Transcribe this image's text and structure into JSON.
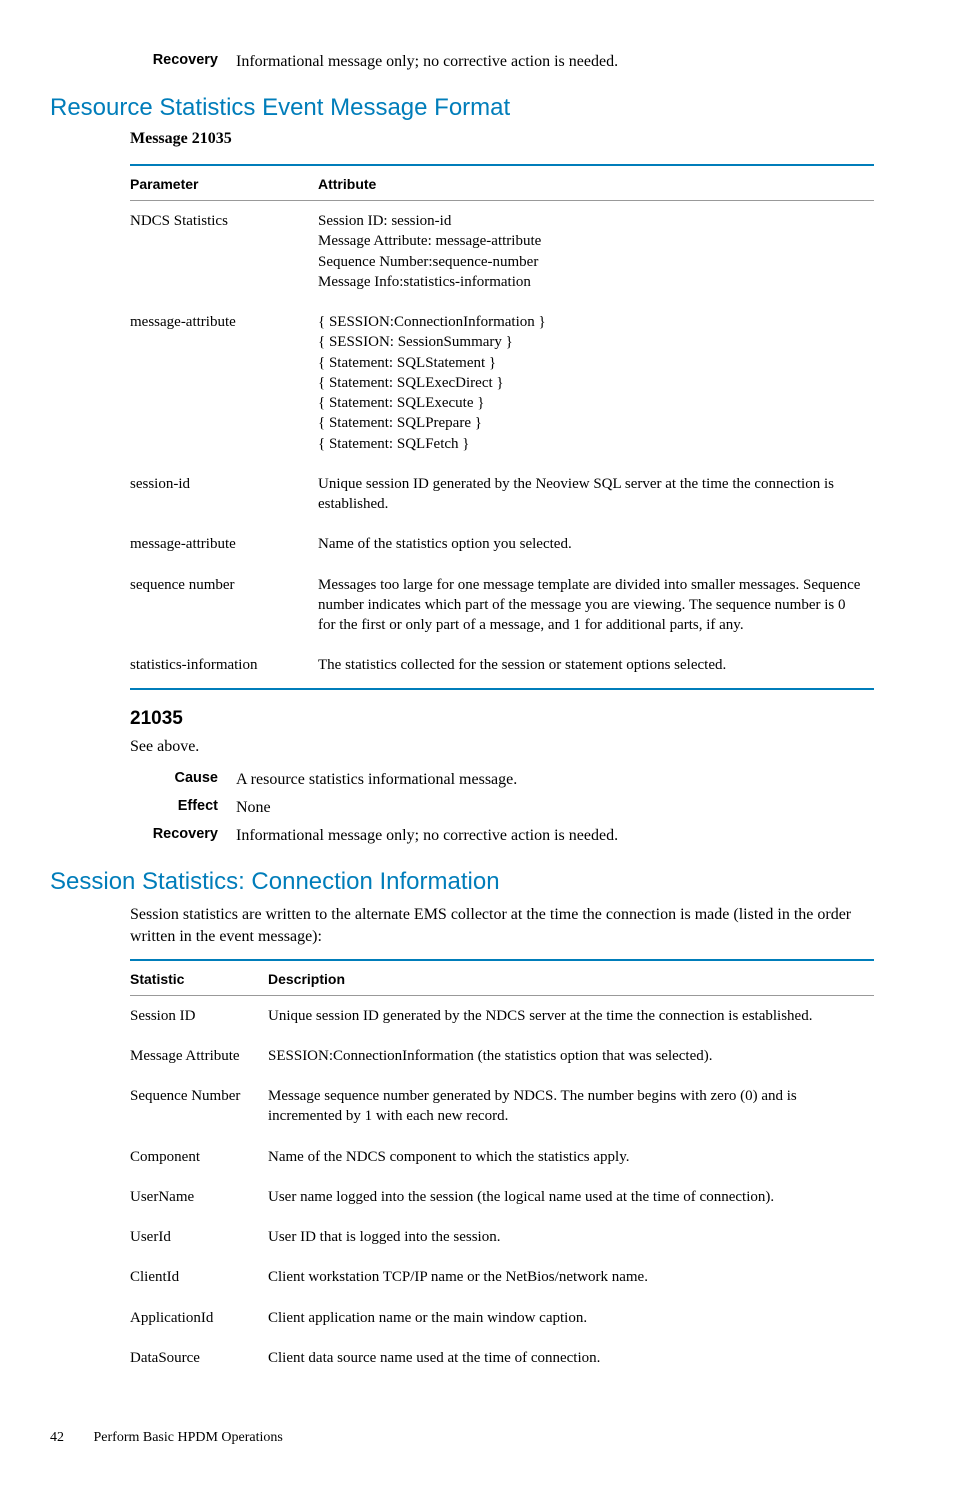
{
  "top_def": {
    "recovery_label": "Recovery",
    "recovery_text": "Informational message only; no corrective action is needed."
  },
  "section1": {
    "title": "Resource Statistics Event Message Format",
    "message_label": "Message 21035",
    "table": {
      "head_param": "Parameter",
      "head_attr": "Attribute",
      "rows": [
        {
          "param": "NDCS Statistics",
          "attr": "Session ID: session-id\nMessage Attribute: message-attribute\nSequence Number:sequence-number\nMessage Info:statistics-information"
        },
        {
          "param": "message-attribute",
          "attr": "{ SESSION:ConnectionInformation }\n{ SESSION: SessionSummary }\n{ Statement: SQLStatement }\n{ Statement: SQLExecDirect }\n{ Statement: SQLExecute }\n{ Statement: SQLPrepare }\n{ Statement: SQLFetch }"
        },
        {
          "param": "session-id",
          "attr": "Unique session ID generated by the Neoview SQL server at the time the connection is established."
        },
        {
          "param": "message-attribute",
          "attr": "Name of the statistics option you selected."
        },
        {
          "param": "sequence number",
          "attr": "Messages too large for one message template are divided into smaller messages. Sequence number indicates which part of the message you are viewing. The sequence number is 0 for the first or only part of a message, and 1 for additional parts, if any."
        },
        {
          "param": "statistics-information",
          "attr": "The statistics collected for the session or statement options selected."
        }
      ]
    },
    "code": "21035",
    "see_above": "See above.",
    "defs": {
      "cause_label": "Cause",
      "cause_text": "A resource statistics informational message.",
      "effect_label": "Effect",
      "effect_text": "None",
      "recovery_label": "Recovery",
      "recovery_text": "Informational message only; no corrective action is needed."
    }
  },
  "section2": {
    "title": "Session Statistics: Connection Information",
    "intro": "Session statistics are written to the alternate EMS collector at the time the connection is made (listed in the order written in the event message):",
    "table": {
      "head_stat": "Statistic",
      "head_desc": "Description",
      "rows": [
        {
          "stat": "Session ID",
          "desc": "Unique session ID generated by the NDCS server at the time the connection is established."
        },
        {
          "stat": "Message Attribute",
          "desc": "SESSION:ConnectionInformation (the statistics option that was selected)."
        },
        {
          "stat": "Sequence Number",
          "desc": "Message sequence number generated by NDCS. The number begins with zero (0) and is incremented by 1 with each new record."
        },
        {
          "stat": "Component",
          "desc": "Name of the NDCS component to which the statistics apply."
        },
        {
          "stat": "UserName",
          "desc": "User name logged into the session (the logical name used at the time of connection)."
        },
        {
          "stat": "UserId",
          "desc": "User ID that is logged into the session."
        },
        {
          "stat": "ClientId",
          "desc": "Client workstation TCP/IP name or the NetBios/network name."
        },
        {
          "stat": "ApplicationId",
          "desc": "Client application name or the main window caption."
        },
        {
          "stat": "DataSource",
          "desc": "Client data source name used at the time of connection."
        }
      ]
    }
  },
  "footer": {
    "page": "42",
    "chapter": "Perform Basic HPDM Operations"
  }
}
